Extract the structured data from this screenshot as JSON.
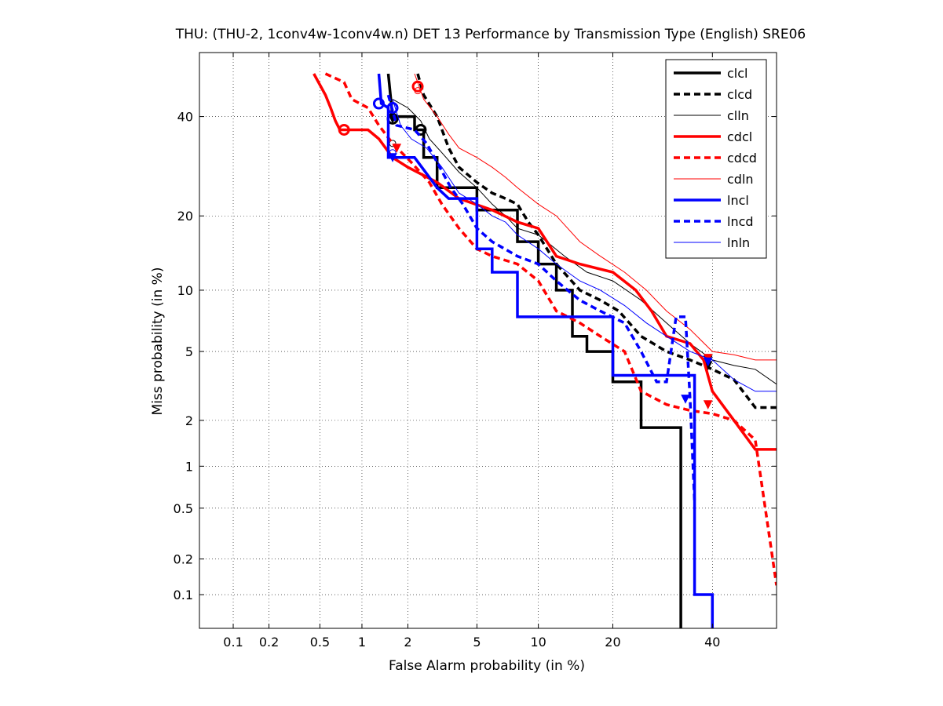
{
  "chart_data": {
    "type": "line",
    "title": "THU: (THU-2, 1conv4w-1conv4w.n) DET 13 Performance by Transmission Type (English) SRE06",
    "xlabel": "False Alarm probability (in %)",
    "ylabel": "Miss probability (in %)",
    "scale": "normal-deviate (probit) on both axes",
    "xlim": [
      0.05,
      55
    ],
    "ylim": [
      0.05,
      55
    ],
    "x_ticks": [
      {
        "value": 0.1,
        "label": "0.1"
      },
      {
        "value": 0.2,
        "label": "0.2"
      },
      {
        "value": 0.5,
        "label": "0.5"
      },
      {
        "value": 1,
        "label": "1"
      },
      {
        "value": 2,
        "label": "2"
      },
      {
        "value": 5,
        "label": "5"
      },
      {
        "value": 10,
        "label": "10"
      },
      {
        "value": 20,
        "label": "20"
      },
      {
        "value": 40,
        "label": "40"
      }
    ],
    "y_ticks": [
      {
        "value": 0.1,
        "label": "0.1"
      },
      {
        "value": 0.2,
        "label": "0.2"
      },
      {
        "value": 0.5,
        "label": "0.5"
      },
      {
        "value": 1,
        "label": "1"
      },
      {
        "value": 2,
        "label": "2"
      },
      {
        "value": 5,
        "label": "5"
      },
      {
        "value": 10,
        "label": "10"
      },
      {
        "value": 20,
        "label": "20"
      },
      {
        "value": 40,
        "label": "40"
      }
    ],
    "grid": true,
    "legend_position": "top-right",
    "series": [
      {
        "name": "clcl",
        "color": "#000000",
        "style": "solid",
        "width": 3.5,
        "points": [
          [
            1.5,
            50
          ],
          [
            1.6,
            40
          ],
          [
            2.2,
            40
          ],
          [
            2.2,
            37
          ],
          [
            2.5,
            37
          ],
          [
            2.5,
            31
          ],
          [
            3,
            31
          ],
          [
            3,
            25
          ],
          [
            5,
            25
          ],
          [
            5,
            21
          ],
          [
            8,
            21
          ],
          [
            8,
            16
          ],
          [
            10,
            16
          ],
          [
            10,
            13
          ],
          [
            12,
            13
          ],
          [
            12,
            10
          ],
          [
            14,
            10
          ],
          [
            14,
            6
          ],
          [
            16,
            6
          ],
          [
            16,
            5
          ],
          [
            20,
            5
          ],
          [
            20,
            3.4
          ],
          [
            25,
            3.4
          ],
          [
            25,
            1.8
          ],
          [
            33,
            1.8
          ],
          [
            33,
            0.05
          ]
        ],
        "actual_dcf": [
          1.6,
          39.5
        ],
        "min_dcf": [
          1.6,
          39.5
        ]
      },
      {
        "name": "clcd",
        "color": "#000000",
        "style": "dashed",
        "width": 3.5,
        "points": [
          [
            2.3,
            50
          ],
          [
            2.5,
            45
          ],
          [
            3,
            40
          ],
          [
            3.5,
            33
          ],
          [
            4,
            29
          ],
          [
            5,
            26
          ],
          [
            6,
            24
          ],
          [
            7,
            23
          ],
          [
            8,
            22
          ],
          [
            9,
            19
          ],
          [
            10,
            17
          ],
          [
            12,
            13
          ],
          [
            15,
            10
          ],
          [
            18,
            9
          ],
          [
            21,
            8
          ],
          [
            25,
            6
          ],
          [
            30,
            5
          ],
          [
            35,
            4.5
          ],
          [
            40,
            4
          ],
          [
            45,
            3.5
          ],
          [
            50,
            2.4
          ],
          [
            55,
            2.4
          ]
        ],
        "actual_dcf": [
          39,
          4.2
        ],
        "min_dcf": [
          2.4,
          37
        ]
      },
      {
        "name": "clln",
        "color": "#000000",
        "style": "solid",
        "width": 1,
        "points": [
          [
            1.6,
            44
          ],
          [
            2,
            42
          ],
          [
            2.4,
            39
          ],
          [
            2.7,
            35
          ],
          [
            3.2,
            32
          ],
          [
            4,
            28
          ],
          [
            5,
            25
          ],
          [
            6,
            22
          ],
          [
            7,
            20
          ],
          [
            8,
            18
          ],
          [
            10,
            17
          ],
          [
            13,
            14
          ],
          [
            16,
            12
          ],
          [
            20,
            11
          ],
          [
            25,
            9
          ],
          [
            30,
            7
          ],
          [
            35,
            5.5
          ],
          [
            40,
            4.5
          ],
          [
            45,
            4.2
          ],
          [
            50,
            4
          ],
          [
            55,
            3.3
          ]
        ],
        "actual_dcf": [
          39,
          4.5
        ],
        "min_dcf": [
          1.6,
          34
        ]
      },
      {
        "name": "cdcl",
        "color": "#ff0000",
        "style": "solid",
        "width": 3.5,
        "points": [
          [
            0.45,
            50
          ],
          [
            0.55,
            45
          ],
          [
            0.6,
            42
          ],
          [
            0.65,
            39
          ],
          [
            0.7,
            37
          ],
          [
            1.1,
            37
          ],
          [
            1.3,
            35
          ],
          [
            1.6,
            31
          ],
          [
            2,
            29
          ],
          [
            3,
            26
          ],
          [
            4,
            23
          ],
          [
            6,
            21
          ],
          [
            8,
            19
          ],
          [
            10,
            18
          ],
          [
            12,
            14
          ],
          [
            15,
            13
          ],
          [
            20,
            12
          ],
          [
            24,
            10
          ],
          [
            27,
            8
          ],
          [
            30,
            6
          ],
          [
            35,
            5.5
          ],
          [
            38,
            4.5
          ],
          [
            40,
            3
          ],
          [
            45,
            2
          ],
          [
            50,
            1.3
          ],
          [
            55,
            1.3
          ]
        ],
        "actual_dcf": [
          1.7,
          33
        ],
        "min_dcf": [
          0.75,
          37
        ]
      },
      {
        "name": "cdcd",
        "color": "#ff0000",
        "style": "dashed",
        "width": 3.5,
        "points": [
          [
            0.55,
            50
          ],
          [
            0.75,
            48
          ],
          [
            0.85,
            44
          ],
          [
            1.1,
            42
          ],
          [
            1.3,
            38
          ],
          [
            1.6,
            34
          ],
          [
            2.1,
            30
          ],
          [
            2.7,
            26
          ],
          [
            3.2,
            22
          ],
          [
            4,
            18
          ],
          [
            5,
            15
          ],
          [
            6,
            14
          ],
          [
            8,
            13
          ],
          [
            10,
            11
          ],
          [
            12,
            8
          ],
          [
            15,
            7
          ],
          [
            18,
            6
          ],
          [
            22,
            5
          ],
          [
            25,
            3
          ],
          [
            30,
            2.5
          ],
          [
            35,
            2.3
          ],
          [
            40,
            2.2
          ],
          [
            45,
            2
          ],
          [
            50,
            1.5
          ],
          [
            55,
            0.12
          ]
        ],
        "actual_dcf": [
          39,
          2.5
        ],
        "min_dcf": [
          2.3,
          47
        ]
      },
      {
        "name": "cdln",
        "color": "#ff0000",
        "style": "solid",
        "width": 1,
        "points": [
          [
            2.2,
            50
          ],
          [
            2.5,
            44
          ],
          [
            3,
            40
          ],
          [
            3.5,
            36
          ],
          [
            4,
            33
          ],
          [
            5,
            31
          ],
          [
            6,
            29
          ],
          [
            7,
            27
          ],
          [
            8,
            25
          ],
          [
            10,
            22
          ],
          [
            12,
            20
          ],
          [
            15,
            16
          ],
          [
            18,
            14
          ],
          [
            22,
            12
          ],
          [
            26,
            10
          ],
          [
            30,
            8
          ],
          [
            35,
            6.5
          ],
          [
            40,
            5
          ],
          [
            45,
            4.8
          ],
          [
            50,
            4.5
          ],
          [
            55,
            4.5
          ]
        ],
        "actual_dcf": [
          39,
          4.6
        ],
        "min_dcf": [
          2.3,
          46
        ]
      },
      {
        "name": "lncl",
        "color": "#0000ff",
        "style": "solid",
        "width": 3.5,
        "points": [
          [
            1.3,
            50
          ],
          [
            1.35,
            43
          ],
          [
            1.5,
            42
          ],
          [
            1.5,
            31
          ],
          [
            2.2,
            31
          ],
          [
            3,
            25
          ],
          [
            3.5,
            23
          ],
          [
            5,
            23
          ],
          [
            5,
            15
          ],
          [
            6,
            15
          ],
          [
            6,
            12
          ],
          [
            8,
            12
          ],
          [
            8,
            7.5
          ],
          [
            14,
            7.5
          ],
          [
            20,
            7.5
          ],
          [
            20,
            3.7
          ],
          [
            36,
            3.7
          ],
          [
            36,
            0.1
          ],
          [
            40,
            0.1
          ],
          [
            40,
            0.05
          ]
        ],
        "actual_dcf": [
          1.6,
          31
        ],
        "min_dcf": [
          1.3,
          43
        ]
      },
      {
        "name": "lncd",
        "color": "#0000ff",
        "style": "dashed",
        "width": 3.5,
        "points": [
          [
            1.5,
            45
          ],
          [
            1.7,
            38
          ],
          [
            2.2,
            37
          ],
          [
            2.6,
            34
          ],
          [
            3,
            30
          ],
          [
            3.6,
            25
          ],
          [
            4.2,
            22
          ],
          [
            5,
            18
          ],
          [
            6,
            16
          ],
          [
            8,
            14
          ],
          [
            10,
            13
          ],
          [
            12,
            11
          ],
          [
            15,
            9
          ],
          [
            18,
            8
          ],
          [
            22,
            7
          ],
          [
            25,
            5
          ],
          [
            28,
            3.4
          ],
          [
            30,
            3.4
          ],
          [
            32,
            7.5
          ],
          [
            34,
            7.5
          ],
          [
            35,
            2.7
          ],
          [
            36,
            0.55
          ]
        ],
        "actual_dcf": [
          34,
          2.7
        ],
        "min_dcf": [
          1.6,
          42
        ]
      },
      {
        "name": "lnln",
        "color": "#0000ff",
        "style": "solid",
        "width": 1,
        "points": [
          [
            1.6,
            44
          ],
          [
            1.8,
            38
          ],
          [
            2.1,
            35
          ],
          [
            2.6,
            33
          ],
          [
            3.2,
            29
          ],
          [
            4,
            24
          ],
          [
            5,
            22
          ],
          [
            6,
            20
          ],
          [
            7,
            19
          ],
          [
            8,
            17
          ],
          [
            10,
            15
          ],
          [
            12,
            13
          ],
          [
            15,
            11
          ],
          [
            18,
            10
          ],
          [
            22,
            8.5
          ],
          [
            26,
            7
          ],
          [
            30,
            6
          ],
          [
            35,
            5
          ],
          [
            40,
            4.5
          ],
          [
            45,
            3.5
          ],
          [
            50,
            3
          ],
          [
            55,
            3
          ]
        ],
        "actual_dcf": [
          39,
          4.4
        ],
        "min_dcf": [
          1.6,
          32
        ]
      }
    ]
  }
}
